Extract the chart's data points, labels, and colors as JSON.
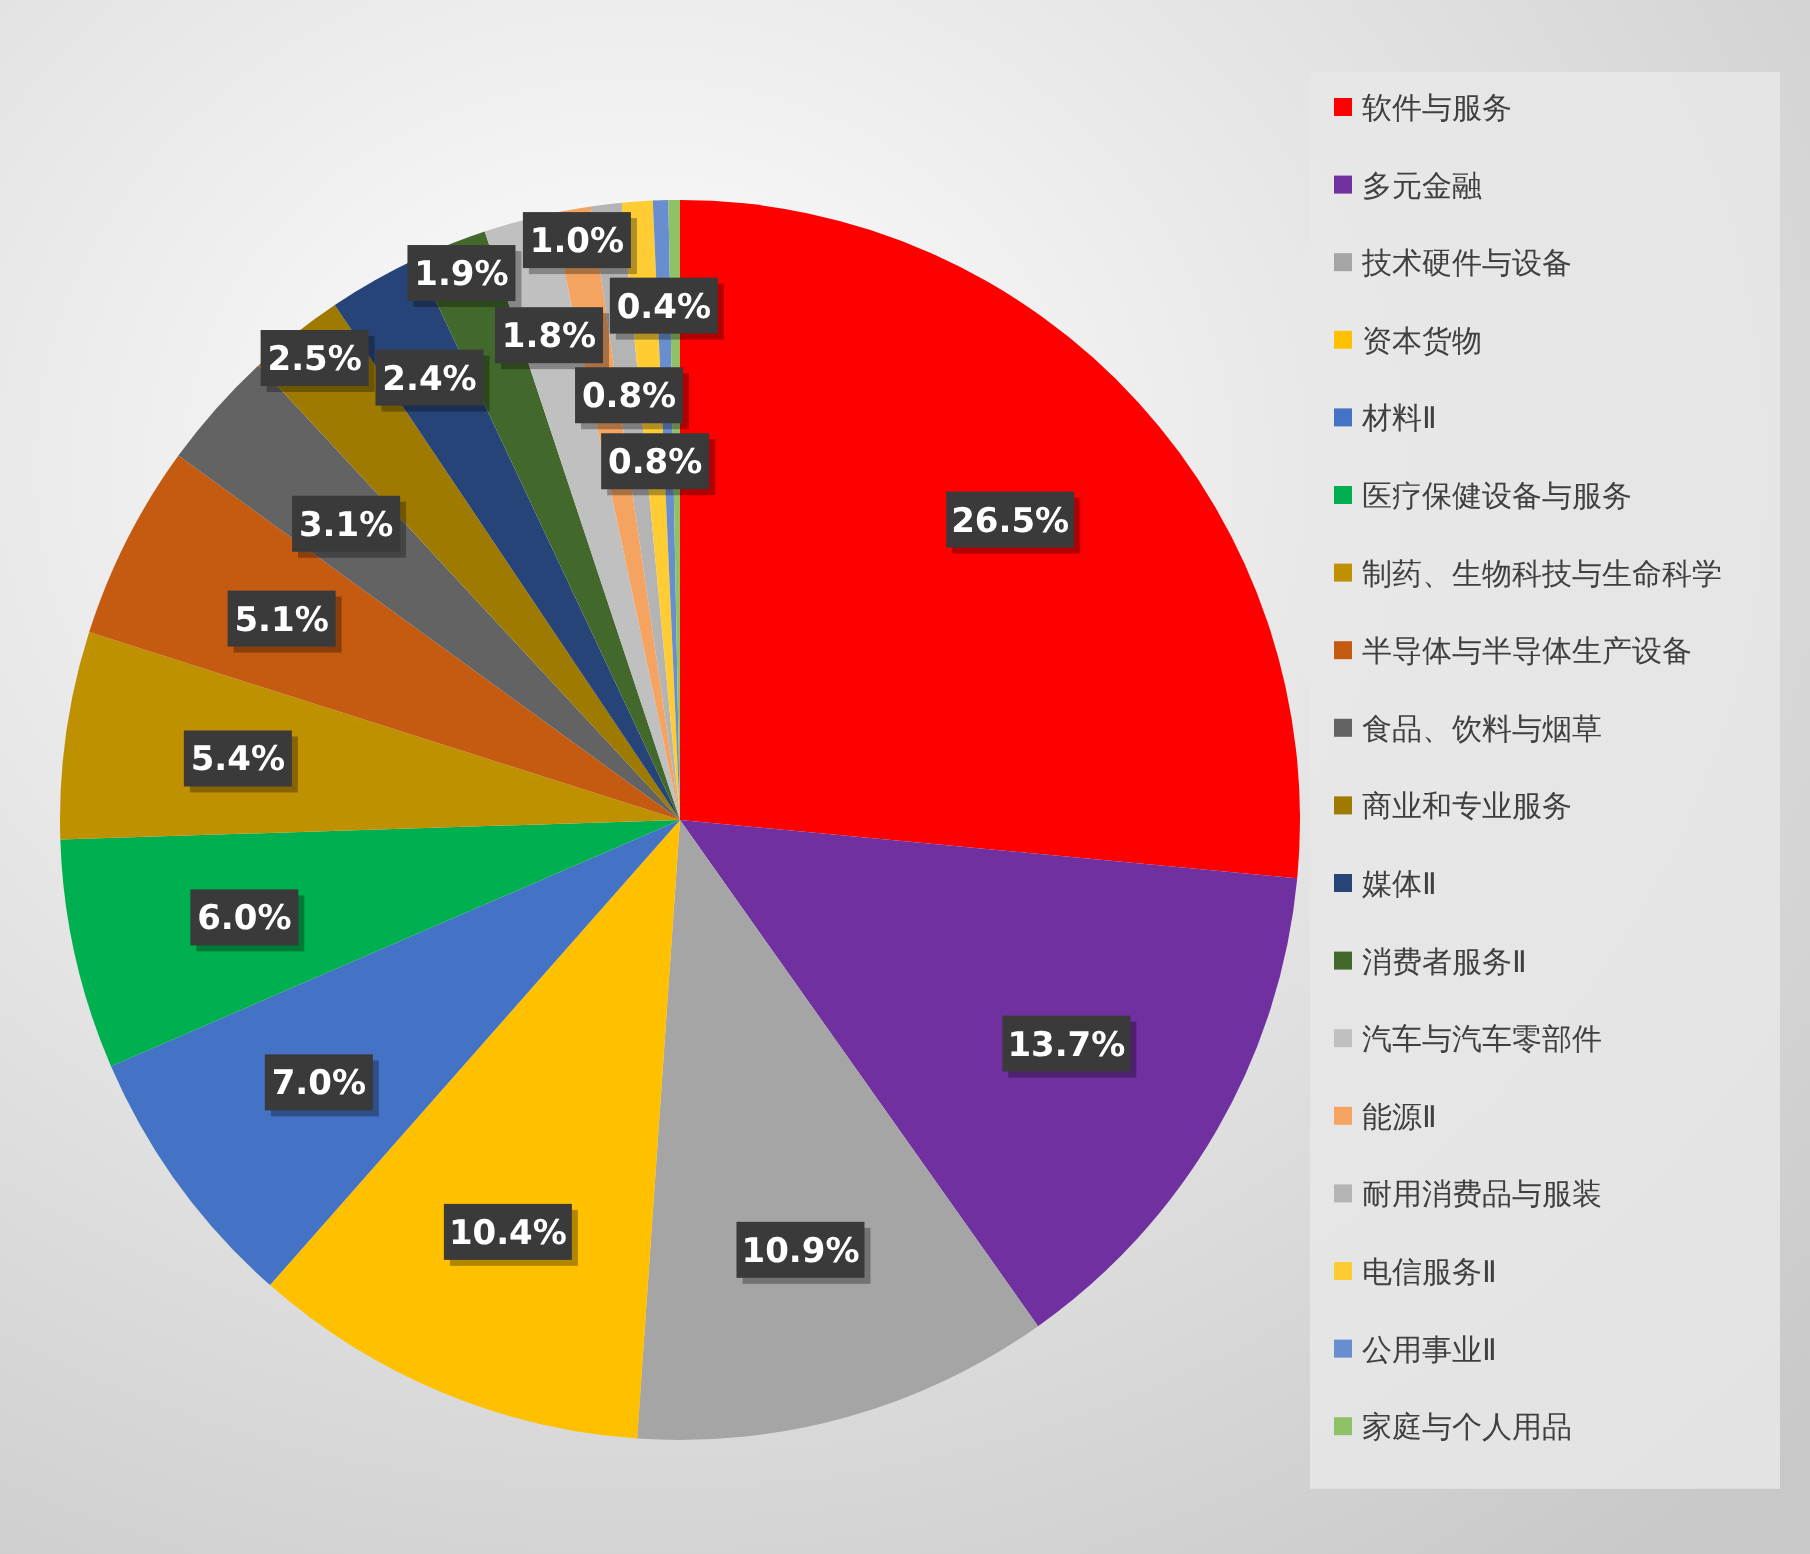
{
  "chart_data": {
    "type": "pie",
    "categories": [
      "软件与服务",
      "多元金融",
      "技术硬件与设备",
      "资本货物",
      "材料Ⅱ",
      "医疗保健设备与服务",
      "制药、生物科技与生命科学",
      "半导体与半导体生产设备",
      "食品、饮料与烟草",
      "商业和专业服务",
      "媒体Ⅱ",
      "消费者服务Ⅱ",
      "汽车与汽车零部件",
      "能源Ⅱ",
      "耐用消费品与服装",
      "电信服务Ⅱ",
      "公用事业Ⅱ",
      "家庭与个人用品"
    ],
    "values": [
      26.5,
      13.7,
      10.9,
      10.4,
      7.0,
      6.0,
      5.4,
      5.1,
      3.1,
      2.5,
      2.4,
      1.9,
      1.8,
      1.0,
      0.8,
      0.8,
      0.4,
      0.3
    ],
    "value_labels": [
      "26.5%",
      "13.7%",
      "10.9%",
      "10.4%",
      "7.0%",
      "6.0%",
      "5.4%",
      "5.1%",
      "3.1%",
      "2.5%",
      "2.4%",
      "1.9%",
      "1.8%",
      "1.0%",
      "0.8%",
      "0.8%",
      "0.4%",
      null
    ],
    "colors": [
      "#ff0000",
      "#7030a0",
      "#a5a5a5",
      "#ffc000",
      "#4472c4",
      "#00b050",
      "#bf9000",
      "#c55a11",
      "#636363",
      "#9e7a00",
      "#264478",
      "#43682b",
      "#c0c0c0",
      "#f4a460",
      "#b4b4b4",
      "#ffcd33",
      "#698ed0",
      "#8fc266"
    ],
    "legend": "right"
  }
}
